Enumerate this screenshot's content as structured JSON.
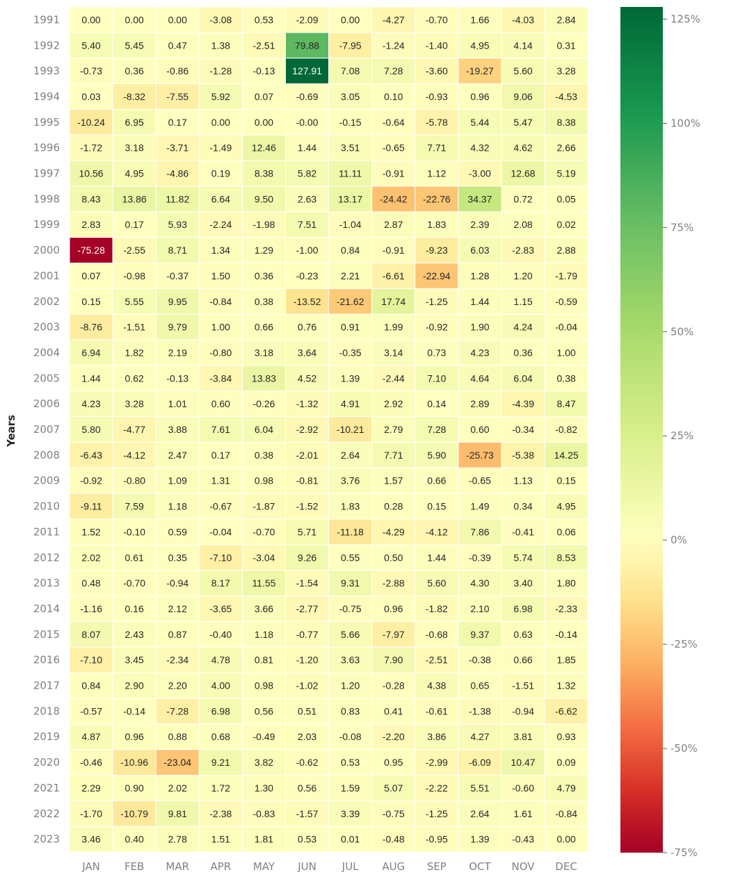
{
  "chart_data": {
    "type": "heatmap",
    "title": "",
    "xlabel": "",
    "ylabel": "Years",
    "x_categories": [
      "JAN",
      "FEB",
      "MAR",
      "APR",
      "MAY",
      "JUN",
      "JUL",
      "AUG",
      "SEP",
      "OCT",
      "NOV",
      "DEC"
    ],
    "y_categories": [
      "1991",
      "1992",
      "1993",
      "1994",
      "1995",
      "1996",
      "1997",
      "1998",
      "1999",
      "2000",
      "2001",
      "2002",
      "2003",
      "2004",
      "2005",
      "2006",
      "2007",
      "2008",
      "2009",
      "2010",
      "2011",
      "2012",
      "2013",
      "2014",
      "2015",
      "2016",
      "2017",
      "2018",
      "2019",
      "2020",
      "2021",
      "2022",
      "2023"
    ],
    "values": [
      [
        "0.00",
        "0.00",
        "0.00",
        "-3.08",
        "0.53",
        "-2.09",
        "0.00",
        "-4.27",
        "-0.70",
        "1.66",
        "-4.03",
        "2.84"
      ],
      [
        "5.40",
        "5.45",
        "0.47",
        "1.38",
        "-2.51",
        "79.88",
        "-7.95",
        "-1.24",
        "-1.40",
        "4.95",
        "4.14",
        "0.31"
      ],
      [
        "-0.73",
        "0.36",
        "-0.86",
        "-1.28",
        "-0.13",
        "127.91",
        "7.08",
        "7.28",
        "-3.60",
        "-19.27",
        "5.60",
        "3.28"
      ],
      [
        "0.03",
        "-8.32",
        "-7.55",
        "5.92",
        "0.07",
        "-0.69",
        "3.05",
        "0.10",
        "-0.93",
        "0.96",
        "9.06",
        "-4.53"
      ],
      [
        "-10.24",
        "6.95",
        "0.17",
        "0.00",
        "0.00",
        "-0.00",
        "-0.15",
        "-0.64",
        "-5.78",
        "5.44",
        "5.47",
        "8.38"
      ],
      [
        "-1.72",
        "3.18",
        "-3.71",
        "-1.49",
        "12.46",
        "1.44",
        "3.51",
        "-0.65",
        "7.71",
        "4.32",
        "4.62",
        "2.66"
      ],
      [
        "10.56",
        "4.95",
        "-4.86",
        "0.19",
        "8.38",
        "5.82",
        "11.11",
        "-0.91",
        "1.12",
        "-3.00",
        "12.68",
        "5.19"
      ],
      [
        "8.43",
        "13.86",
        "11.82",
        "6.64",
        "9.50",
        "2.63",
        "13.17",
        "-24.42",
        "-22.76",
        "34.37",
        "0.72",
        "0.05"
      ],
      [
        "2.83",
        "0.17",
        "5.93",
        "-2.24",
        "-1.98",
        "7.51",
        "-1.04",
        "2.87",
        "1.83",
        "2.39",
        "2.08",
        "0.02"
      ],
      [
        "-75.28",
        "-2.55",
        "8.71",
        "1.34",
        "1.29",
        "-1.00",
        "0.84",
        "-0.91",
        "-9.23",
        "6.03",
        "-2.83",
        "2.88"
      ],
      [
        "0.07",
        "-0.98",
        "-0.37",
        "1.50",
        "0.36",
        "-0.23",
        "2.21",
        "-6.61",
        "-22.94",
        "1.28",
        "1.20",
        "-1.79"
      ],
      [
        "0.15",
        "5.55",
        "9.95",
        "-0.84",
        "0.38",
        "-13.52",
        "-21.62",
        "17.74",
        "-1.25",
        "1.44",
        "1.15",
        "-0.59"
      ],
      [
        "-8.76",
        "-1.51",
        "9.79",
        "1.00",
        "0.66",
        "0.76",
        "0.91",
        "1.99",
        "-0.92",
        "1.90",
        "4.24",
        "-0.04"
      ],
      [
        "6.94",
        "1.82",
        "2.19",
        "-0.80",
        "3.18",
        "3.64",
        "-0.35",
        "3.14",
        "0.73",
        "4.23",
        "0.36",
        "1.00"
      ],
      [
        "1.44",
        "0.62",
        "-0.13",
        "-3.84",
        "13.83",
        "4.52",
        "1.39",
        "-2.44",
        "7.10",
        "4.64",
        "6.04",
        "0.38"
      ],
      [
        "4.23",
        "3.28",
        "1.01",
        "0.60",
        "-0.26",
        "-1.32",
        "4.91",
        "2.92",
        "0.14",
        "2.89",
        "-4.39",
        "8.47"
      ],
      [
        "5.80",
        "-4.77",
        "3.88",
        "7.61",
        "6.04",
        "-2.92",
        "-10.21",
        "2.79",
        "7.28",
        "0.60",
        "-0.34",
        "-0.82"
      ],
      [
        "-6.43",
        "-4.12",
        "2.47",
        "0.17",
        "0.38",
        "-2.01",
        "2.64",
        "7.71",
        "5.90",
        "-25.73",
        "-5.38",
        "14.25"
      ],
      [
        "-0.92",
        "-0.80",
        "1.09",
        "1.31",
        "0.98",
        "-0.81",
        "3.76",
        "1.57",
        "0.66",
        "-0.65",
        "1.13",
        "0.15"
      ],
      [
        "-9.11",
        "7.59",
        "1.18",
        "-0.67",
        "-1.87",
        "-1.52",
        "1.83",
        "0.28",
        "0.15",
        "1.49",
        "0.34",
        "4.95"
      ],
      [
        "1.52",
        "-0.10",
        "0.59",
        "-0.04",
        "-0.70",
        "5.71",
        "-11.18",
        "-4.29",
        "-4.12",
        "7.86",
        "-0.41",
        "0.06"
      ],
      [
        "2.02",
        "0.61",
        "0.35",
        "-7.10",
        "-3.04",
        "9.26",
        "0.55",
        "0.50",
        "1.44",
        "-0.39",
        "5.74",
        "8.53"
      ],
      [
        "0.48",
        "-0.70",
        "-0.94",
        "8.17",
        "11.55",
        "-1.54",
        "9.31",
        "-2.88",
        "5.60",
        "4.30",
        "3.40",
        "1.80"
      ],
      [
        "-1.16",
        "0.16",
        "2.12",
        "-3.65",
        "3.66",
        "-2.77",
        "-0.75",
        "0.96",
        "-1.82",
        "2.10",
        "6.98",
        "-2.33"
      ],
      [
        "8.07",
        "2.43",
        "0.87",
        "-0.40",
        "1.18",
        "-0.77",
        "5.66",
        "-7.97",
        "-0.68",
        "9.37",
        "0.63",
        "-0.14"
      ],
      [
        "-7.10",
        "3.45",
        "-2.34",
        "4.78",
        "0.81",
        "-1.20",
        "3.63",
        "7.90",
        "-2.51",
        "-0.38",
        "0.66",
        "1.85"
      ],
      [
        "0.84",
        "2.90",
        "2.20",
        "4.00",
        "0.98",
        "-1.02",
        "1.20",
        "-0.28",
        "4.38",
        "0.65",
        "-1.51",
        "1.32"
      ],
      [
        "-0.57",
        "-0.14",
        "-7.28",
        "6.98",
        "0.56",
        "0.51",
        "0.83",
        "0.41",
        "-0.61",
        "-1.38",
        "-0.94",
        "-6.62"
      ],
      [
        "4.87",
        "0.96",
        "0.88",
        "0.68",
        "-0.49",
        "2.03",
        "-0.08",
        "-2.20",
        "3.86",
        "4.27",
        "3.81",
        "0.93"
      ],
      [
        "-0.46",
        "-10.96",
        "-23.04",
        "9.21",
        "3.82",
        "-0.62",
        "0.53",
        "0.95",
        "-2.99",
        "-6.09",
        "10.47",
        "0.09"
      ],
      [
        "2.29",
        "0.90",
        "2.02",
        "1.72",
        "1.30",
        "0.56",
        "1.59",
        "5.07",
        "-2.22",
        "5.51",
        "-0.60",
        "4.79"
      ],
      [
        "-1.70",
        "-10.79",
        "9.81",
        "-2.38",
        "-0.83",
        "-1.57",
        "3.39",
        "-0.75",
        "-1.25",
        "2.64",
        "1.61",
        "-0.84"
      ],
      [
        "3.46",
        "0.40",
        "2.78",
        "1.51",
        "1.81",
        "0.53",
        "0.01",
        "-0.48",
        "-0.95",
        "1.39",
        "-0.43",
        "0.00"
      ]
    ],
    "colorbar": {
      "min": -75,
      "max": 127.91,
      "center": 0,
      "ticks": [
        125,
        100,
        75,
        50,
        25,
        0,
        -25,
        -50,
        -75
      ],
      "tick_labels": [
        "125%",
        "100%",
        "75%",
        "50%",
        "25%",
        "0%",
        "-25%",
        "-50%",
        "-75%"
      ]
    },
    "colormap": "RdYlGn",
    "colors": {
      "low": "#f46d43",
      "mid": "#ffffbf",
      "high": "#006837",
      "cell_border": "#ffffff",
      "tick_text": "#808080"
    },
    "grid": false,
    "legend": "colorbar-right"
  }
}
